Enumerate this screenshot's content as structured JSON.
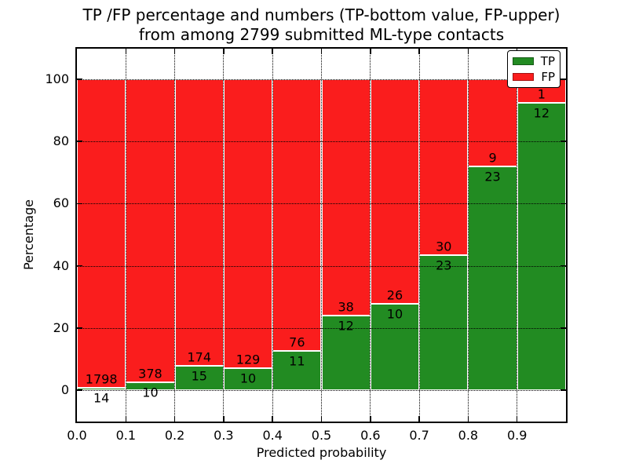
{
  "title": {
    "line1": "TP /FP percentage and numbers (TP-bottom value, FP-upper)",
    "line2": "from among 2799 submitted ML-type contacts"
  },
  "axes": {
    "xlabel": "Predicted probability",
    "ylabel": "Percentage",
    "x_tick_values": [
      0.0,
      0.1,
      0.2,
      0.3,
      0.4,
      0.5,
      0.6,
      0.7,
      0.8,
      0.9
    ],
    "x_tick_labels": [
      "0.0",
      "0.1",
      "0.2",
      "0.3",
      "0.4",
      "0.5",
      "0.6",
      "0.7",
      "0.8",
      "0.9"
    ],
    "y_tick_values": [
      0,
      20,
      40,
      60,
      80,
      100
    ],
    "y_tick_labels": [
      "0",
      "20",
      "40",
      "60",
      "80",
      "100"
    ]
  },
  "legend": {
    "items": [
      {
        "label": "TP",
        "color": "#228b22"
      },
      {
        "label": "FP",
        "color": "#fa1d1d"
      }
    ]
  },
  "chart_data": {
    "type": "bar",
    "stacked": true,
    "normalized": "percent",
    "title": "TP /FP percentage and numbers (TP-bottom value, FP-upper) from among 2799 submitted ML-type contacts",
    "xlabel": "Predicted probability",
    "ylabel": "Percentage",
    "xlim": [
      0.0,
      1.0
    ],
    "ylim": [
      -11,
      110
    ],
    "grid": true,
    "legend_position": "upper right",
    "total_contacts": 2799,
    "bin_width": 0.1,
    "bin_starts": [
      0.0,
      0.1,
      0.2,
      0.3,
      0.4,
      0.5,
      0.6,
      0.7,
      0.8,
      0.9
    ],
    "series": [
      {
        "name": "TP",
        "color": "#228b22",
        "counts": [
          14,
          10,
          15,
          10,
          11,
          12,
          10,
          23,
          23,
          12
        ],
        "percent": [
          0.77,
          2.58,
          7.94,
          7.19,
          12.64,
          24.0,
          27.78,
          43.4,
          71.88,
          92.31
        ]
      },
      {
        "name": "FP",
        "color": "#fa1d1d",
        "counts": [
          1798,
          378,
          174,
          129,
          76,
          38,
          26,
          30,
          9,
          1
        ],
        "percent": [
          99.23,
          97.42,
          92.06,
          92.81,
          87.36,
          76.0,
          72.22,
          56.6,
          28.12,
          7.69
        ]
      }
    ]
  }
}
